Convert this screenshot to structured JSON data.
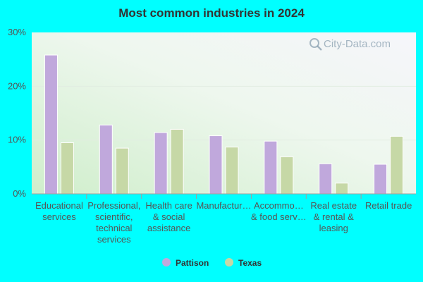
{
  "chart_data": {
    "type": "bar",
    "title": "Most common industries in 2024",
    "xlabel": "",
    "ylabel": "",
    "ylim": [
      0,
      30
    ],
    "yticks": [
      "0%",
      "10%",
      "20%",
      "30%"
    ],
    "categories": [
      [
        "Educational",
        "services"
      ],
      [
        "Professional,",
        "scientific,",
        "technical",
        "services"
      ],
      [
        "Health care",
        "& social",
        "assistance"
      ],
      [
        "Manufactur…"
      ],
      [
        "Accommo…",
        "& food serv…"
      ],
      [
        "Real estate",
        "& rental &",
        "leasing"
      ],
      [
        "Retail trade"
      ]
    ],
    "series": [
      {
        "name": "Pattison",
        "color": "#c0a8dc",
        "values": [
          25.8,
          12.8,
          11.4,
          10.8,
          9.8,
          5.6,
          5.5
        ]
      },
      {
        "name": "Texas",
        "color": "#c6d8a6",
        "values": [
          9.5,
          8.5,
          12.0,
          8.7,
          6.9,
          2.0,
          10.7
        ]
      }
    ],
    "grid": true,
    "legend": "bottom-center",
    "watermark": "City-Data.com"
  }
}
